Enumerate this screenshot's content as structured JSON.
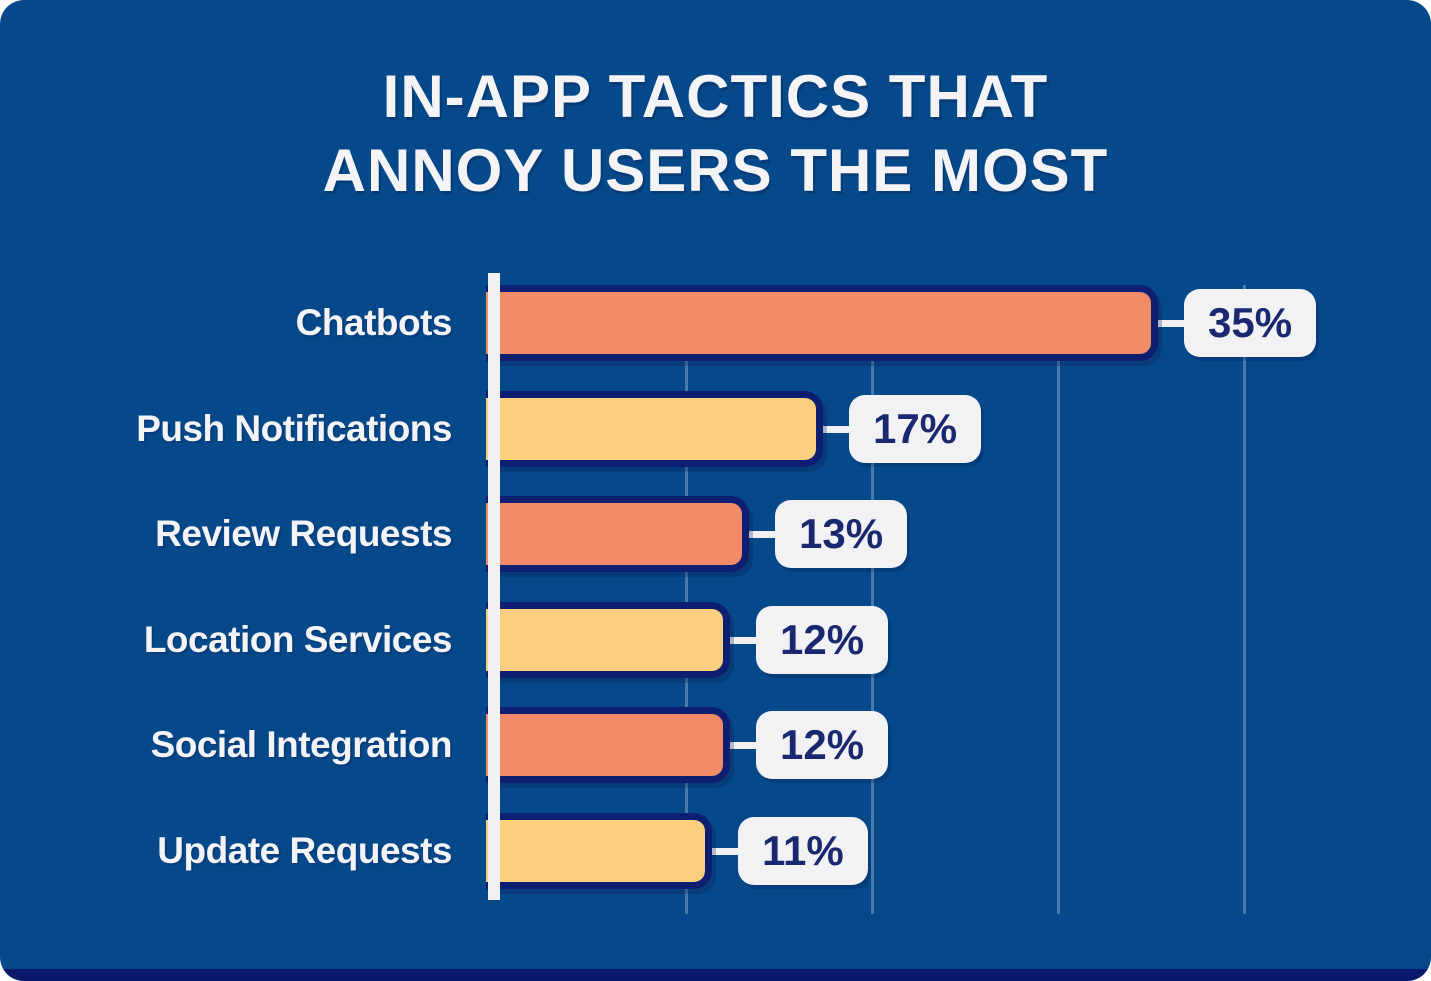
{
  "title": {
    "lines": [
      "IN-APP TACTICS THAT",
      "ANNOY USERS THE MOST"
    ]
  },
  "chart_data": {
    "type": "bar",
    "orientation": "horizontal",
    "title": "IN-APP TACTICS THAT ANNOY USERS THE MOST",
    "categories": [
      "Chatbots",
      "Push Notifications",
      "Review Requests",
      "Location Services",
      "Social Integration",
      "Update Requests"
    ],
    "values": [
      35,
      17,
      13,
      12,
      12,
      11
    ],
    "value_labels": [
      "35%",
      "17%",
      "13%",
      "12%",
      "12%",
      "11%"
    ],
    "unit": "percent",
    "xlim": [
      0,
      50
    ],
    "gridlines": [
      10,
      20,
      30,
      40
    ],
    "grid": "vertical-lines-no-tick-labels",
    "legend_position": "none",
    "bar_color_sequence": [
      "orange",
      "yellow",
      "orange",
      "yellow",
      "orange",
      "yellow"
    ]
  },
  "colors": {
    "background": "#05498A",
    "orange": "#F28B67",
    "yellow": "#FACF7D",
    "bar_outline": "#0E1E70",
    "callout_bg": "#F2F1F3",
    "value_text": "#1A2870",
    "label_text": "#F4F3F6",
    "axis": "#F1F1F4",
    "gridline": "rgba(230,238,248,0.30)",
    "bottom_strip": "#0A196B"
  }
}
